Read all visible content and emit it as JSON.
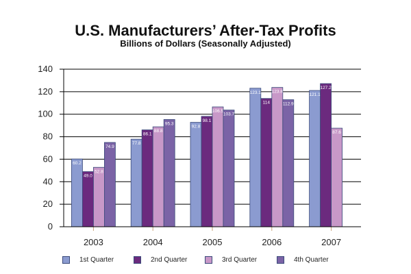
{
  "chart_data": {
    "type": "bar",
    "title": "U.S. Manufacturers’ After-Tax Profits",
    "subtitle": "Billions of Dollars (Seasonally Adjusted)",
    "xlabel": "",
    "ylabel": "",
    "ylim": [
      0,
      140
    ],
    "yticks": [
      0,
      20,
      40,
      60,
      80,
      100,
      120,
      140
    ],
    "grid": true,
    "legend_position": "bottom",
    "categories": [
      "2003",
      "2004",
      "2005",
      "2006",
      "2007"
    ],
    "series": [
      {
        "name": "1st Quarter",
        "color": "#8b9bd0",
        "values": [
          60.2,
          77.8,
          92.8,
          123.1,
          121.1
        ],
        "labels": [
          "60.2",
          "77.8",
          "92.8",
          "123.1",
          "121.1"
        ]
      },
      {
        "name": "2nd Quarter",
        "color": "#6b2a7e",
        "values": [
          49.0,
          86.1,
          98.1,
          114,
          127.2
        ],
        "labels": [
          "49.0",
          "86.1",
          "98.1",
          "114",
          "127.2"
        ]
      },
      {
        "name": "3rd Quarter",
        "color": "#c898c8",
        "values": [
          52.8,
          88.8,
          106.5,
          123.8,
          87.6
        ],
        "labels": [
          "52.8",
          "88.8",
          "106.5",
          "123.8",
          "87.6"
        ]
      },
      {
        "name": "4th Quarter",
        "color": "#7b63a6",
        "values": [
          74.9,
          95.3,
          103.7,
          112.9,
          null
        ],
        "labels": [
          "74.9",
          "95.3",
          "103.7",
          "112.9",
          null
        ]
      }
    ]
  }
}
